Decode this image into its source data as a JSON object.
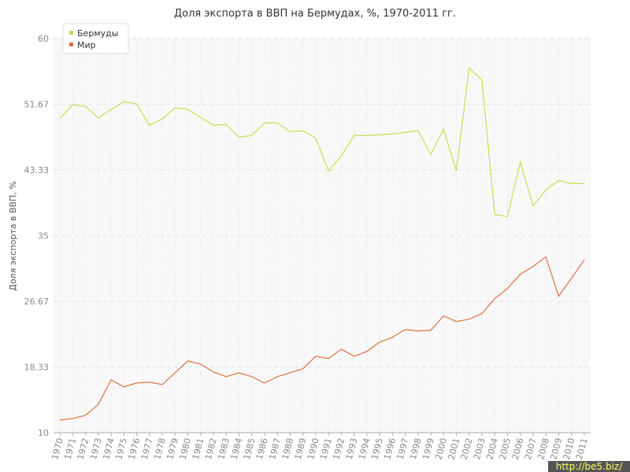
{
  "chart_data": {
    "type": "line",
    "title": "Доля экспорта в ВВП на Бермудах, %, 1970-2011 гг.",
    "y_label": "Доля экспорта в ВВП, %",
    "watermark": "http://be5.biz/",
    "categories": [
      "1970",
      "1971",
      "1972",
      "1973",
      "1974",
      "1975",
      "1976",
      "1977",
      "1978",
      "1979",
      "1980",
      "1981",
      "1982",
      "1983",
      "1984",
      "1985",
      "1986",
      "1987",
      "1988",
      "1989",
      "1990",
      "1991",
      "1992",
      "1993",
      "1994",
      "1995",
      "1996",
      "1997",
      "1998",
      "1999",
      "2000",
      "2001",
      "2002",
      "2003",
      "2004",
      "2005",
      "2006",
      "2007",
      "2008",
      "2009",
      "2010",
      "2011"
    ],
    "series": [
      {
        "name": "Бермуды",
        "color": "#c3df4f",
        "values": [
          49.9,
          51.6,
          51.4,
          49.9,
          51.0,
          52.0,
          51.7,
          49.0,
          49.8,
          51.2,
          51.0,
          50.0,
          49.0,
          49.1,
          47.5,
          47.7,
          49.3,
          49.3,
          48.2,
          48.3,
          47.4,
          43.2,
          45.1,
          47.7,
          47.7,
          47.8,
          47.9,
          48.1,
          48.3,
          45.3,
          48.5,
          43.2,
          56.3,
          54.7,
          37.7,
          37.4,
          44.3,
          38.8,
          40.8,
          42.0,
          41.6,
          41.6
        ]
      },
      {
        "name": "Мир",
        "color": "#e0703f",
        "values": [
          11.6,
          11.8,
          12.2,
          13.6,
          16.7,
          15.8,
          16.3,
          16.4,
          16.1,
          17.6,
          19.1,
          18.7,
          17.7,
          17.1,
          17.6,
          17.1,
          16.3,
          17.1,
          17.6,
          18.1,
          19.7,
          19.4,
          20.6,
          19.7,
          20.3,
          21.5,
          22.1,
          23.1,
          22.9,
          23.0,
          24.8,
          24.1,
          24.4,
          25.1,
          27.0,
          28.3,
          30.1,
          31.1,
          32.3,
          27.3,
          29.6,
          31.9
        ]
      }
    ],
    "ylim": [
      10,
      60
    ],
    "yticks": [
      10,
      18.33,
      26.67,
      35,
      43.33,
      51.67,
      60
    ],
    "grid": true,
    "legend": "top-left"
  }
}
